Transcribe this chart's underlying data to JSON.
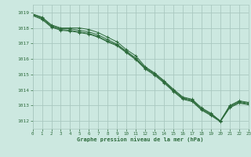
{
  "title": "Graphe pression niveau de la mer (hPa)",
  "background_color": "#cce8e0",
  "grid_color": "#aac8c0",
  "line_color": "#2d6b3c",
  "xlim": [
    0,
    23
  ],
  "ylim": [
    1011.5,
    1019.5
  ],
  "yticks": [
    1012,
    1013,
    1014,
    1015,
    1016,
    1017,
    1018,
    1019
  ],
  "xticks": [
    0,
    1,
    2,
    3,
    4,
    5,
    6,
    7,
    8,
    9,
    10,
    11,
    12,
    13,
    14,
    15,
    16,
    17,
    18,
    19,
    20,
    21,
    22,
    23
  ],
  "series": [
    [
      1018.9,
      1018.7,
      1018.2,
      1018.0,
      1018.0,
      1018.0,
      1017.9,
      1017.7,
      1017.4,
      1017.1,
      1016.6,
      1016.2,
      1015.5,
      1015.1,
      1014.6,
      1014.05,
      1013.55,
      1013.4,
      1012.85,
      1012.5,
      1012.0,
      1013.0,
      1013.3,
      1013.2
    ],
    [
      1018.9,
      1018.65,
      1018.15,
      1017.95,
      1017.95,
      1017.85,
      1017.75,
      1017.55,
      1017.25,
      1016.95,
      1016.5,
      1016.05,
      1015.45,
      1015.05,
      1014.55,
      1014.0,
      1013.5,
      1013.35,
      1012.8,
      1012.45,
      1012.0,
      1012.95,
      1013.25,
      1013.15
    ],
    [
      1018.85,
      1018.6,
      1018.1,
      1017.9,
      1017.85,
      1017.75,
      1017.65,
      1017.45,
      1017.15,
      1016.9,
      1016.45,
      1016.0,
      1015.4,
      1015.0,
      1014.5,
      1013.95,
      1013.45,
      1013.3,
      1012.75,
      1012.4,
      1012.0,
      1012.9,
      1013.2,
      1013.1
    ],
    [
      1018.8,
      1018.55,
      1018.05,
      1017.85,
      1017.8,
      1017.7,
      1017.6,
      1017.4,
      1017.1,
      1016.85,
      1016.4,
      1015.95,
      1015.35,
      1014.95,
      1014.45,
      1013.9,
      1013.4,
      1013.25,
      1012.7,
      1012.35,
      1011.95,
      1012.85,
      1013.15,
      1013.05
    ]
  ]
}
